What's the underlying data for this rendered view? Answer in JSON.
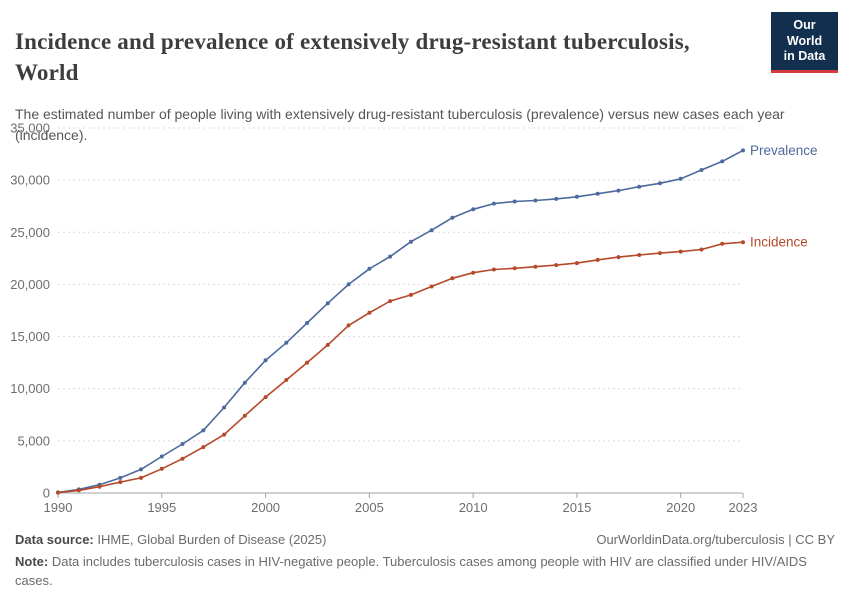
{
  "header": {
    "title": "Incidence and prevalence of extensively drug-resistant tuberculosis, World",
    "subtitle": "The estimated number of people living with extensively drug-resistant tuberculosis (prevalence) versus new cases each year (incidence).",
    "logo": {
      "line1": "Our World",
      "line2": "in Data",
      "bg_color": "#12304E",
      "accent_color": "#D13B3F"
    }
  },
  "chart_data": {
    "type": "line",
    "title": "Incidence and prevalence of extensively drug-resistant tuberculosis, World",
    "xlabel": "",
    "ylabel": "",
    "x": [
      1990,
      1991,
      1992,
      1993,
      1994,
      1995,
      1996,
      1997,
      1998,
      1999,
      2000,
      2001,
      2002,
      2003,
      2004,
      2005,
      2006,
      2007,
      2008,
      2009,
      2010,
      2011,
      2012,
      2013,
      2014,
      2015,
      2016,
      2017,
      2018,
      2019,
      2020,
      2021,
      2022,
      2023
    ],
    "series": [
      {
        "name": "Prevalence",
        "color": "#4C6A9C",
        "values": [
          60,
          350,
          800,
          1450,
          2260,
          3500,
          4700,
          6000,
          8200,
          10580,
          12720,
          14400,
          16300,
          18200,
          20000,
          21500,
          22670,
          24100,
          25200,
          26400,
          27200,
          27750,
          27950,
          28050,
          28200,
          28400,
          28700,
          29000,
          29370,
          29700,
          30130,
          30970,
          31800,
          32850
        ]
      },
      {
        "name": "Incidence",
        "color": "#B5492B",
        "values": [
          40,
          250,
          600,
          1050,
          1450,
          2320,
          3290,
          4400,
          5600,
          7400,
          9200,
          10840,
          12500,
          14200,
          16070,
          17280,
          18400,
          19000,
          19800,
          20590,
          21120,
          21430,
          21550,
          21700,
          21850,
          22050,
          22350,
          22620,
          22820,
          23000,
          23150,
          23350,
          23900,
          24050
        ]
      }
    ],
    "xlim": [
      1990,
      2023
    ],
    "ylim": [
      0,
      35000
    ],
    "xticks": [
      1990,
      1995,
      2000,
      2005,
      2010,
      2015,
      2020,
      2023
    ],
    "yticks": [
      0,
      5000,
      10000,
      15000,
      20000,
      25000,
      30000,
      35000
    ],
    "ytick_labels": [
      "0",
      "5,000",
      "10,000",
      "15,000",
      "20,000",
      "25,000",
      "30,000",
      "35,000"
    ],
    "grid": "horizontal-dashed",
    "legend_position": "end-of-line-labels",
    "axis_color": "#a3a3a3",
    "grid_color": "#dcdcdc",
    "tick_label_color": "#6e6e6e"
  },
  "footer": {
    "source_label": "Data source:",
    "source_text": " IHME, Global Burden of Disease (2025)",
    "link_text": "OurWorldinData.org/tuberculosis | CC BY",
    "note_label": "Note:",
    "note_text": " Data includes tuberculosis cases in HIV-negative people. Tuberculosis cases among people with HIV are classified under HIV/AIDS cases."
  }
}
